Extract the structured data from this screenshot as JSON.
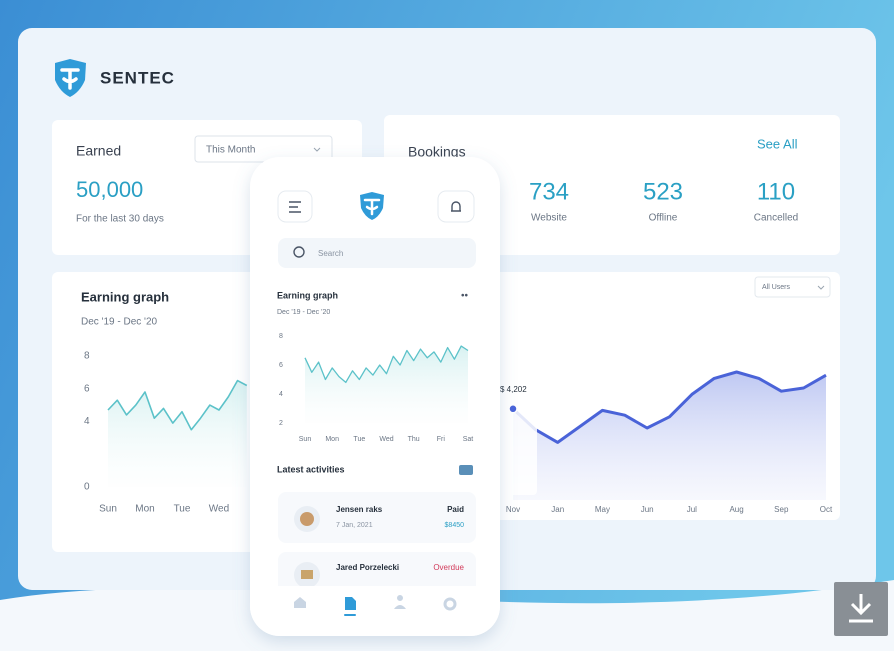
{
  "brand": "SENTEC",
  "earned": {
    "title": "Earned",
    "filter": "This Month",
    "value": "50,000",
    "caption": "For the last 30 days"
  },
  "bookings": {
    "title": "Bookings",
    "link": "See All",
    "stats": [
      {
        "value": 734,
        "label": "Website"
      },
      {
        "value": 523,
        "label": "Offline"
      },
      {
        "value": 110,
        "label": "Cancelled"
      }
    ]
  },
  "phone": {
    "search": "Search",
    "activities_title": "Latest activities",
    "activities": [
      {
        "name": "Jensen raks",
        "date": "7 Jan, 2021",
        "status": "Paid",
        "amount": "$8450"
      },
      {
        "name": "Jared Porzelecki",
        "status": "Overdue"
      }
    ]
  },
  "chart_data": [
    {
      "type": "line",
      "title": "Earning graph",
      "subtitle": "Dec '19 - Dec '20",
      "color": "#5cc2c9",
      "x": [
        0,
        0.25,
        0.5,
        0.75,
        1,
        1.25,
        1.5,
        1.75,
        2,
        2.25,
        2.5,
        2.75,
        3,
        3.25,
        3.5,
        3.75
      ],
      "values": [
        4.7,
        5.3,
        4.4,
        5.0,
        5.8,
        4.2,
        4.8,
        3.9,
        4.6,
        3.5,
        4.2,
        5.0,
        4.7,
        5.5,
        6.5,
        6.2
      ],
      "xlim": [
        0,
        3.75
      ],
      "xticks": [
        {
          "value": 0,
          "label": "Sun"
        },
        {
          "value": 1,
          "label": "Mon"
        },
        {
          "value": 2,
          "label": "Tue"
        },
        {
          "value": 3,
          "label": "Wed"
        }
      ],
      "ylim": [
        0,
        8
      ],
      "yticks": [
        0,
        4,
        6,
        8
      ]
    },
    {
      "type": "area",
      "filter": "All Users",
      "annotation": "$ 4,202",
      "color": "#4a63d8",
      "x": [
        0,
        0.5,
        1,
        1.5,
        2,
        2.5,
        3,
        3.5,
        4,
        4.5,
        5,
        5.5,
        6,
        6.5,
        7
      ],
      "values": [
        5.7,
        4.4,
        3.6,
        4.6,
        5.6,
        5.3,
        4.5,
        5.2,
        6.6,
        7.6,
        8.0,
        7.6,
        6.8,
        7.0,
        7.8
      ],
      "xlim": [
        0,
        7
      ],
      "xticks": [
        {
          "value": 0,
          "label": "Nov"
        },
        {
          "value": 1,
          "label": "Jan"
        },
        {
          "value": 2,
          "label": "May"
        },
        {
          "value": 3,
          "label": "Jun"
        },
        {
          "value": 4,
          "label": "Jul"
        },
        {
          "value": 5,
          "label": "Aug"
        },
        {
          "value": 6,
          "label": "Sep"
        },
        {
          "value": 7,
          "label": "Oct"
        }
      ],
      "ylim": [
        0,
        10
      ]
    },
    {
      "type": "line",
      "title": "Earning graph",
      "subtitle": "Dec '19 - Dec '20",
      "color": "#5cc2c9",
      "x": [
        0,
        0.25,
        0.5,
        0.75,
        1,
        1.25,
        1.5,
        1.75,
        2,
        2.25,
        2.5,
        2.75,
        3,
        3.25,
        3.5,
        3.75,
        4,
        4.25,
        4.5,
        4.75,
        5,
        5.25,
        5.5,
        5.75,
        6
      ],
      "values": [
        6.5,
        5.5,
        6.2,
        5.0,
        5.8,
        5.2,
        4.8,
        5.6,
        5.0,
        5.8,
        5.3,
        6.0,
        5.4,
        6.6,
        6.0,
        7.0,
        6.3,
        7.1,
        6.5,
        6.9,
        6.2,
        7.2,
        6.4,
        7.3,
        7.0
      ],
      "xlim": [
        0,
        6
      ],
      "xticks": [
        {
          "value": 0,
          "label": "Sun"
        },
        {
          "value": 1,
          "label": "Mon"
        },
        {
          "value": 2,
          "label": "Tue"
        },
        {
          "value": 3,
          "label": "Wed"
        },
        {
          "value": 4,
          "label": "Thu"
        },
        {
          "value": 5,
          "label": "Fri"
        },
        {
          "value": 6,
          "label": "Sat"
        }
      ],
      "ylim": [
        2,
        8
      ],
      "yticks": [
        2,
        4,
        6,
        8
      ]
    }
  ]
}
